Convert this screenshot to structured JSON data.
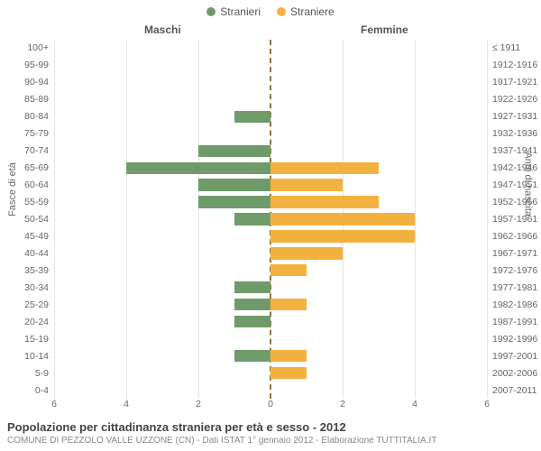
{
  "chart": {
    "type": "population-pyramid",
    "legend": {
      "male": {
        "label": "Stranieri",
        "color": "#6f9b6b"
      },
      "female": {
        "label": "Straniere",
        "color": "#f3b23f"
      }
    },
    "header_male": "Maschi",
    "header_female": "Femmine",
    "yaxis_left_title": "Fasce di età",
    "yaxis_right_title": "Anni di nascita",
    "xlim": 6,
    "xtick_step": 2,
    "xticks_left": [
      "6",
      "4",
      "2",
      "0"
    ],
    "xticks_right": [
      "0",
      "2",
      "4",
      "6"
    ],
    "grid_color": "#e5e5e5",
    "center_line_color": "#8a7a3a",
    "background_color": "#ffffff",
    "bar_height_ratio": 0.7,
    "rows": [
      {
        "age": "100+",
        "birth": "≤ 1911",
        "m": 0,
        "f": 0
      },
      {
        "age": "95-99",
        "birth": "1912-1916",
        "m": 0,
        "f": 0
      },
      {
        "age": "90-94",
        "birth": "1917-1921",
        "m": 0,
        "f": 0
      },
      {
        "age": "85-89",
        "birth": "1922-1926",
        "m": 0,
        "f": 0
      },
      {
        "age": "80-84",
        "birth": "1927-1931",
        "m": 1,
        "f": 0
      },
      {
        "age": "75-79",
        "birth": "1932-1936",
        "m": 0,
        "f": 0
      },
      {
        "age": "70-74",
        "birth": "1937-1941",
        "m": 2,
        "f": 0
      },
      {
        "age": "65-69",
        "birth": "1942-1946",
        "m": 4,
        "f": 3
      },
      {
        "age": "60-64",
        "birth": "1947-1951",
        "m": 2,
        "f": 2
      },
      {
        "age": "55-59",
        "birth": "1952-1956",
        "m": 2,
        "f": 3
      },
      {
        "age": "50-54",
        "birth": "1957-1961",
        "m": 1,
        "f": 4
      },
      {
        "age": "45-49",
        "birth": "1962-1966",
        "m": 0,
        "f": 4
      },
      {
        "age": "40-44",
        "birth": "1967-1971",
        "m": 0,
        "f": 2
      },
      {
        "age": "35-39",
        "birth": "1972-1976",
        "m": 0,
        "f": 1
      },
      {
        "age": "30-34",
        "birth": "1977-1981",
        "m": 1,
        "f": 0
      },
      {
        "age": "25-29",
        "birth": "1982-1986",
        "m": 1,
        "f": 1
      },
      {
        "age": "20-24",
        "birth": "1987-1991",
        "m": 1,
        "f": 0
      },
      {
        "age": "15-19",
        "birth": "1992-1996",
        "m": 0,
        "f": 0
      },
      {
        "age": "10-14",
        "birth": "1997-2001",
        "m": 1,
        "f": 1
      },
      {
        "age": "5-9",
        "birth": "2002-2006",
        "m": 0,
        "f": 1
      },
      {
        "age": "0-4",
        "birth": "2007-2011",
        "m": 0,
        "f": 0
      }
    ]
  },
  "caption": {
    "title": "Popolazione per cittadinanza straniera per età e sesso - 2012",
    "subtitle": "COMUNE DI PEZZOLO VALLE UZZONE (CN) - Dati ISTAT 1° gennaio 2012 - Elaborazione TUTTITALIA.IT"
  }
}
